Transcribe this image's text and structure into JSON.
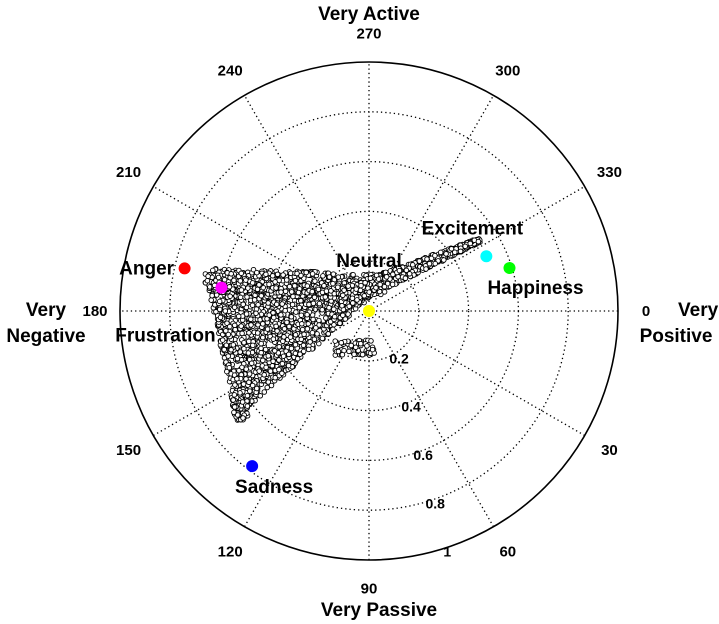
{
  "chart_data": {
    "type": "scatter",
    "projection": "polar",
    "theta_direction": "clockwise",
    "theta_zero_location": "right",
    "r_range": [
      0,
      1
    ],
    "r_ticks": [
      "0.2",
      "0.4",
      "0.6",
      "0.8",
      "1"
    ],
    "theta_ticks": [
      "0",
      "30",
      "60",
      "90",
      "120",
      "150",
      "180",
      "210",
      "240",
      "270",
      "300",
      "330"
    ],
    "grid": true,
    "axis_labels": {
      "top": "Very Active",
      "bottom": "Very Passive",
      "left_line1": "Very",
      "left_line2": "Negative",
      "right_line1": "Very",
      "right_line2": "Positive"
    },
    "emotions": [
      {
        "name": "Neutral",
        "theta": 270,
        "r": 0.0,
        "color": "#ffff00",
        "label": "Neutral"
      },
      {
        "name": "Excitement",
        "theta": 335,
        "r": 0.52,
        "color": "#00ffff",
        "label": "Excitement"
      },
      {
        "name": "Happiness",
        "theta": 343,
        "r": 0.59,
        "color": "#00ff00",
        "label": "Happiness"
      },
      {
        "name": "Anger",
        "theta": 193,
        "r": 0.76,
        "color": "#ff0000",
        "label": "Anger"
      },
      {
        "name": "Frustration",
        "theta": 189,
        "r": 0.6,
        "color": "#ff00ff",
        "label": "Frustration"
      },
      {
        "name": "Sadness",
        "theta": 127,
        "r": 0.78,
        "color": "#0000ff",
        "label": "Sadness"
      }
    ],
    "point_cloud": {
      "marker": "open-circle",
      "approx_points": 2600,
      "regions": "triangular cloud spanning from Anger/Frustration (theta≈185-195, r≈0.55-0.7) down to Sadness (theta≈125-140, r≈0.55-0.65) and a narrow arm toward Excitement (theta≈330-345, r≈0.1-0.5)"
    }
  }
}
